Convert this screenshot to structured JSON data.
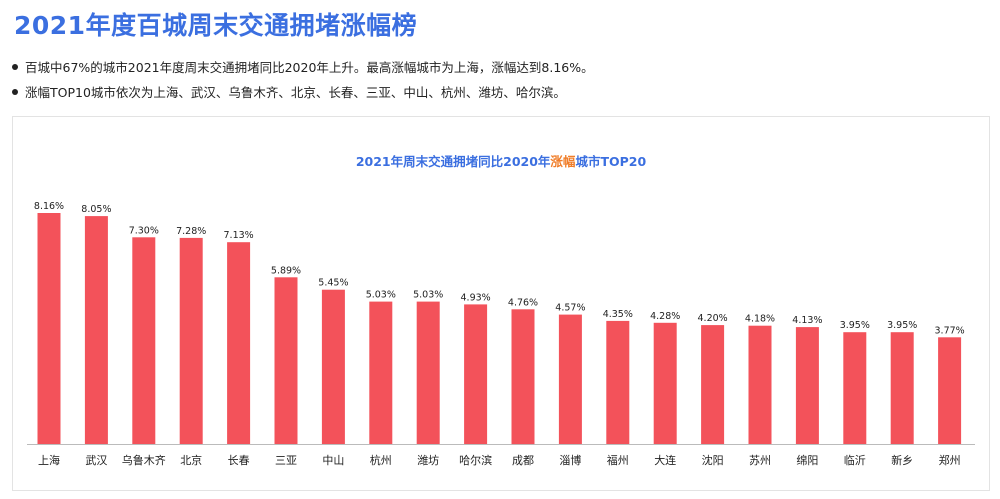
{
  "page": {
    "title": "2021年度百城周末交通拥堵涨幅榜",
    "bullets": [
      "百城中67%的城市2021年度周末交通拥堵同比2020年上升。最高涨幅城市为上海，涨幅达到8.16%。",
      "涨幅TOP10城市依次为上海、武汉、乌鲁木齐、北京、长春、三亚、中山、杭州、潍坊、哈尔滨。"
    ]
  },
  "colors": {
    "bar": "#f3525a",
    "title": "#3b6fe0",
    "highlight": "#f07e2a"
  },
  "chart_data": {
    "type": "bar",
    "title_pre": "2021年周末交通拥堵同比2020年",
    "title_highlight": "涨幅",
    "title_post": "城市TOP20",
    "unit": "%",
    "categories": [
      "上海",
      "武汉",
      "乌鲁木齐",
      "北京",
      "长春",
      "三亚",
      "中山",
      "杭州",
      "潍坊",
      "哈尔滨",
      "成都",
      "淄博",
      "福州",
      "大连",
      "沈阳",
      "苏州",
      "绵阳",
      "临沂",
      "新乡",
      "郑州"
    ],
    "values": [
      8.16,
      8.05,
      7.3,
      7.28,
      7.13,
      5.89,
      5.45,
      5.03,
      5.03,
      4.93,
      4.76,
      4.57,
      4.35,
      4.28,
      4.2,
      4.18,
      4.13,
      3.95,
      3.95,
      3.77
    ],
    "ylim": [
      0,
      8.16
    ],
    "grid": false,
    "legend": "none"
  }
}
